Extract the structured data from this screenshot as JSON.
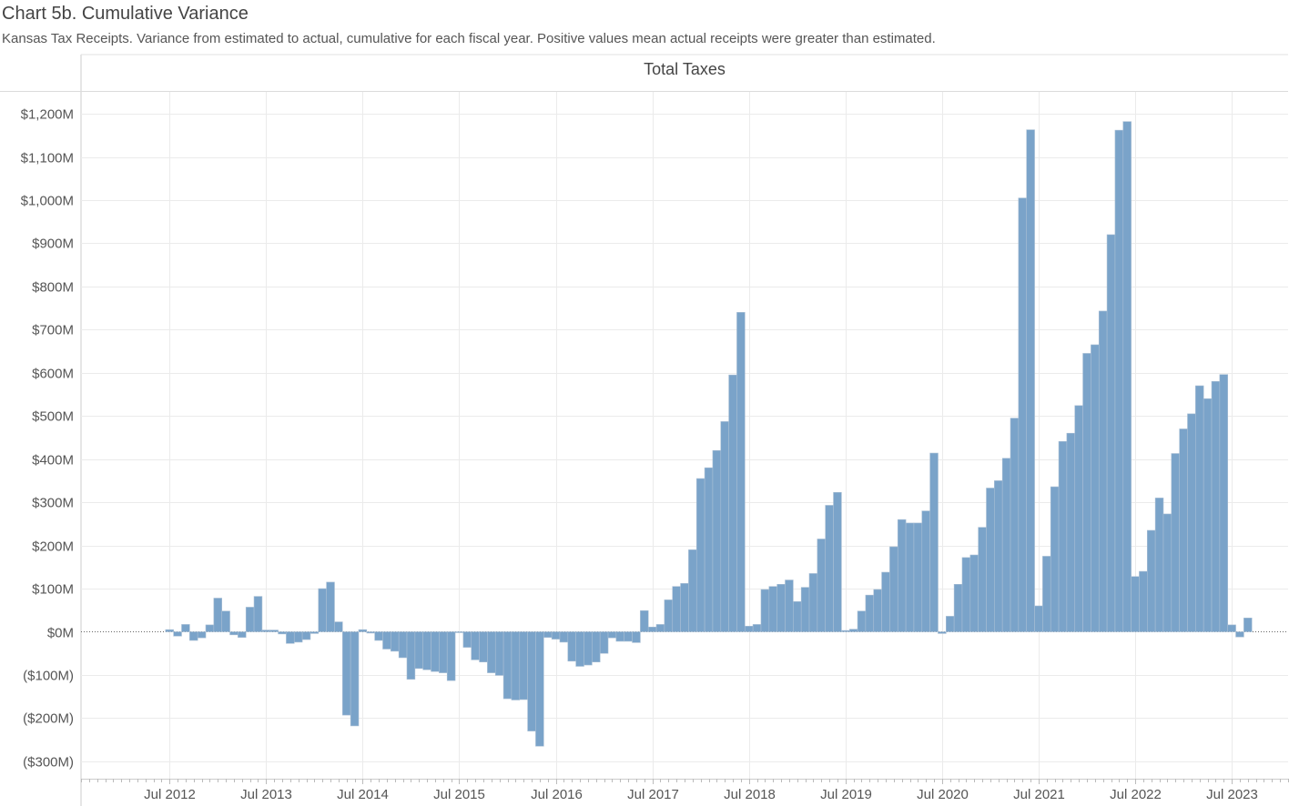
{
  "header": {
    "title": "Chart 5b. Cumulative Variance",
    "subtitle": "Kansas Tax Receipts. Variance from estimated to actual, cumulative for each fiscal year.  Positive values mean actual receipts were greater than estimated.",
    "panel_title": "Total Taxes"
  },
  "colors": {
    "bar": "#7aa3c9",
    "bar_edge": "#a8bed4",
    "grid": "#ebebeb",
    "axis": "#cccccc",
    "text": "#555555"
  },
  "chart_data": {
    "type": "bar",
    "title": "Total Taxes",
    "xlabel": "",
    "ylabel": "",
    "ylim": [
      -340,
      1260
    ],
    "grid": true,
    "y_ticks": [
      {
        "value": 1200,
        "label": "$1,200M"
      },
      {
        "value": 1100,
        "label": "$1,100M"
      },
      {
        "value": 1000,
        "label": "$1,000M"
      },
      {
        "value": 900,
        "label": "$900M"
      },
      {
        "value": 800,
        "label": "$800M"
      },
      {
        "value": 700,
        "label": "$700M"
      },
      {
        "value": 600,
        "label": "$600M"
      },
      {
        "value": 500,
        "label": "$500M"
      },
      {
        "value": 400,
        "label": "$400M"
      },
      {
        "value": 300,
        "label": "$300M"
      },
      {
        "value": 200,
        "label": "$200M"
      },
      {
        "value": 100,
        "label": "$100M"
      },
      {
        "value": 0,
        "label": "$0M"
      },
      {
        "value": -100,
        "label": "($100M)"
      },
      {
        "value": -200,
        "label": "($200M)"
      },
      {
        "value": -300,
        "label": "($300M)"
      }
    ],
    "x_ticks": [
      {
        "month": "2012-07",
        "label": "Jul 2012"
      },
      {
        "month": "2013-07",
        "label": "Jul 2013"
      },
      {
        "month": "2014-07",
        "label": "Jul 2014"
      },
      {
        "month": "2015-07",
        "label": "Jul 2015"
      },
      {
        "month": "2016-07",
        "label": "Jul 2016"
      },
      {
        "month": "2017-07",
        "label": "Jul 2017"
      },
      {
        "month": "2018-07",
        "label": "Jul 2018"
      },
      {
        "month": "2019-07",
        "label": "Jul 2019"
      },
      {
        "month": "2020-07",
        "label": "Jul 2020"
      },
      {
        "month": "2021-07",
        "label": "Jul 2021"
      },
      {
        "month": "2022-07",
        "label": "Jul 2022"
      },
      {
        "month": "2023-07",
        "label": "Jul 2023"
      }
    ],
    "x_range": [
      "2011-08",
      "2024-02"
    ],
    "months": [
      "2012-07",
      "2012-08",
      "2012-09",
      "2012-10",
      "2012-11",
      "2012-12",
      "2013-01",
      "2013-02",
      "2013-03",
      "2013-04",
      "2013-05",
      "2013-06",
      "2013-07",
      "2013-08",
      "2013-09",
      "2013-10",
      "2013-11",
      "2013-12",
      "2014-01",
      "2014-02",
      "2014-03",
      "2014-04",
      "2014-05",
      "2014-06",
      "2014-07",
      "2014-08",
      "2014-09",
      "2014-10",
      "2014-11",
      "2014-12",
      "2015-01",
      "2015-02",
      "2015-03",
      "2015-04",
      "2015-05",
      "2015-06",
      "2015-07",
      "2015-08",
      "2015-09",
      "2015-10",
      "2015-11",
      "2015-12",
      "2016-01",
      "2016-02",
      "2016-03",
      "2016-04",
      "2016-05",
      "2016-06",
      "2016-07",
      "2016-08",
      "2016-09",
      "2016-10",
      "2016-11",
      "2016-12",
      "2017-01",
      "2017-02",
      "2017-03",
      "2017-04",
      "2017-05",
      "2017-06",
      "2017-07",
      "2017-08",
      "2017-09",
      "2017-10",
      "2017-11",
      "2017-12",
      "2018-01",
      "2018-02",
      "2018-03",
      "2018-04",
      "2018-05",
      "2018-06",
      "2018-07",
      "2018-08",
      "2018-09",
      "2018-10",
      "2018-11",
      "2018-12",
      "2019-01",
      "2019-02",
      "2019-03",
      "2019-04",
      "2019-05",
      "2019-06",
      "2019-07",
      "2019-08",
      "2019-09",
      "2019-10",
      "2019-11",
      "2019-12",
      "2020-01",
      "2020-02",
      "2020-03",
      "2020-04",
      "2020-05",
      "2020-06",
      "2020-07",
      "2020-08",
      "2020-09",
      "2020-10",
      "2020-11",
      "2020-12",
      "2021-01",
      "2021-02",
      "2021-03",
      "2021-04",
      "2021-05",
      "2021-06",
      "2021-07",
      "2021-08",
      "2021-09",
      "2021-10",
      "2021-11",
      "2021-12",
      "2022-01",
      "2022-02",
      "2022-03",
      "2022-04",
      "2022-05",
      "2022-06",
      "2022-07",
      "2022-08",
      "2022-09",
      "2022-10",
      "2022-11",
      "2022-12",
      "2023-01",
      "2023-02",
      "2023-03",
      "2023-04",
      "2023-05",
      "2023-06",
      "2023-07",
      "2023-08",
      "2023-09"
    ],
    "values": [
      5,
      -10,
      17,
      -20,
      -14,
      16,
      78,
      48,
      -7,
      -13,
      57,
      82,
      4,
      4,
      -5,
      -27,
      -24,
      -18,
      -4,
      100,
      115,
      23,
      -193,
      -218,
      5,
      -3,
      -20,
      -40,
      -45,
      -60,
      -110,
      -85,
      -88,
      -92,
      -95,
      -113,
      -2,
      -36,
      -65,
      -70,
      -95,
      -101,
      -155,
      -158,
      -157,
      -230,
      -265,
      -13,
      -17,
      -24,
      -68,
      -80,
      -77,
      -70,
      -50,
      -14,
      -22,
      -22,
      -25,
      49,
      11,
      17,
      74,
      105,
      112,
      190,
      355,
      380,
      420,
      487,
      595,
      740,
      13,
      17,
      98,
      105,
      110,
      120,
      70,
      103,
      135,
      215,
      293,
      323,
      3,
      6,
      48,
      85,
      98,
      138,
      197,
      260,
      252,
      252,
      280,
      414,
      -4,
      36,
      110,
      172,
      178,
      242,
      333,
      350,
      402,
      495,
      1005,
      1163,
      60,
      175,
      336,
      441,
      460,
      524,
      645,
      665,
      743,
      920,
      1162,
      1182,
      128,
      140,
      235,
      310,
      273,
      413,
      470,
      505,
      570,
      540,
      580,
      596,
      16,
      -12,
      32
    ]
  }
}
